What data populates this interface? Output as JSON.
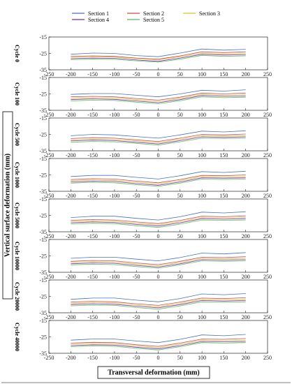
{
  "chart_data": {
    "type": "line",
    "xlabel": "Transversal deformation (mm)",
    "ylabel": "Vertical surface deformation (mm)",
    "xlim": [
      -250,
      250
    ],
    "ylim": [
      -35,
      -15
    ],
    "x_ticks": [
      "-250",
      "-200",
      "-150",
      "-100",
      "-50",
      "0",
      "50",
      "100",
      "150",
      "200",
      "250"
    ],
    "y_ticks": [
      "-15",
      "-25",
      "-35"
    ],
    "legend": [
      {
        "name": "Section 1",
        "color": "#4472C4"
      },
      {
        "name": "Section 2",
        "color": "#C0504D"
      },
      {
        "name": "Section 3",
        "color": "#E6B93B"
      },
      {
        "name": "Section 4",
        "color": "#7030A0"
      },
      {
        "name": "Section 5",
        "color": "#5BBF5B"
      }
    ],
    "x": [
      -200,
      -150,
      -100,
      -50,
      0,
      50,
      100,
      150,
      200
    ],
    "panels": [
      {
        "label": "Cycle 0",
        "series": [
          {
            "name": "Section 1",
            "values": [
              -25.5,
              -24.8,
              -25.0,
              -26.3,
              -27.0,
              -24.8,
              -22.3,
              -23.0,
              -22.5
            ]
          },
          {
            "name": "Section 2",
            "values": [
              -26.8,
              -26.5,
              -26.8,
              -27.8,
              -28.5,
              -26.5,
              -24.0,
              -24.5,
              -24.0
            ]
          },
          {
            "name": "Section 3",
            "values": [
              -27.5,
              -27.0,
              -27.2,
              -28.2,
              -29.0,
              -27.0,
              -24.8,
              -25.3,
              -25.0
            ]
          },
          {
            "name": "Section 4",
            "values": [
              -28.2,
              -27.8,
              -28.0,
              -29.0,
              -29.8,
              -27.8,
              -25.5,
              -26.0,
              -25.8
            ]
          },
          {
            "name": "Section 5",
            "values": [
              -28.8,
              -28.5,
              -28.6,
              -29.5,
              -30.3,
              -28.5,
              -26.2,
              -26.8,
              -26.5
            ]
          }
        ]
      },
      {
        "label": "Cycle 100",
        "series": [
          {
            "name": "Section 1",
            "values": [
              -25.3,
              -24.8,
              -24.8,
              -25.8,
              -26.8,
              -25.0,
              -22.8,
              -23.3,
              -22.5
            ]
          },
          {
            "name": "Section 2",
            "values": [
              -26.8,
              -26.5,
              -26.8,
              -27.8,
              -28.8,
              -27.0,
              -24.5,
              -25.0,
              -24.5
            ]
          },
          {
            "name": "Section 3",
            "values": [
              -27.8,
              -27.3,
              -27.5,
              -28.5,
              -29.5,
              -27.8,
              -25.3,
              -25.8,
              -25.5
            ]
          },
          {
            "name": "Section 4",
            "values": [
              -28.5,
              -28.0,
              -28.3,
              -29.3,
              -30.3,
              -28.5,
              -26.0,
              -26.5,
              -26.3
            ]
          },
          {
            "name": "Section 5",
            "values": [
              -29.3,
              -28.8,
              -29.0,
              -30.0,
              -31.0,
              -29.2,
              -26.8,
              -27.3,
              -27.0
            ]
          }
        ]
      },
      {
        "label": "Cycle 500",
        "series": [
          {
            "name": "Section 1",
            "values": [
              -25.8,
              -25.0,
              -25.3,
              -26.3,
              -27.3,
              -25.3,
              -23.0,
              -23.5,
              -22.8
            ]
          },
          {
            "name": "Section 2",
            "values": [
              -27.5,
              -27.0,
              -27.3,
              -28.3,
              -29.3,
              -27.3,
              -25.0,
              -25.3,
              -24.8
            ]
          },
          {
            "name": "Section 3",
            "values": [
              -28.3,
              -27.8,
              -28.0,
              -29.0,
              -30.0,
              -28.0,
              -25.8,
              -26.0,
              -25.8
            ]
          },
          {
            "name": "Section 4",
            "values": [
              -29.0,
              -28.5,
              -28.8,
              -29.8,
              -30.8,
              -28.8,
              -26.5,
              -26.8,
              -26.5
            ]
          },
          {
            "name": "Section 5",
            "values": [
              -29.8,
              -29.3,
              -29.5,
              -30.5,
              -31.5,
              -29.5,
              -27.3,
              -27.5,
              -27.3
            ]
          }
        ]
      },
      {
        "label": "Cycle 1000",
        "series": [
          {
            "name": "Section 1",
            "values": [
              -26.0,
              -25.3,
              -25.3,
              -26.5,
              -27.5,
              -25.5,
              -23.0,
              -23.5,
              -22.8
            ]
          },
          {
            "name": "Section 2",
            "values": [
              -27.8,
              -27.3,
              -27.5,
              -28.8,
              -29.8,
              -27.8,
              -25.3,
              -25.5,
              -25.0
            ]
          },
          {
            "name": "Section 3",
            "values": [
              -28.5,
              -28.0,
              -28.3,
              -29.5,
              -30.5,
              -28.5,
              -26.0,
              -26.3,
              -26.0
            ]
          },
          {
            "name": "Section 4",
            "values": [
              -29.3,
              -28.8,
              -29.0,
              -30.3,
              -31.3,
              -29.3,
              -26.8,
              -27.0,
              -26.8
            ]
          },
          {
            "name": "Section 5",
            "values": [
              -30.0,
              -29.5,
              -29.8,
              -31.0,
              -32.0,
              -30.0,
              -27.5,
              -27.8,
              -27.5
            ]
          }
        ]
      },
      {
        "label": "Cycle 5000",
        "series": [
          {
            "name": "Section 1",
            "values": [
              -26.3,
              -25.5,
              -25.5,
              -26.8,
              -27.8,
              -25.8,
              -23.0,
              -23.5,
              -22.8
            ]
          },
          {
            "name": "Section 2",
            "values": [
              -28.0,
              -27.5,
              -27.8,
              -29.0,
              -30.0,
              -28.0,
              -25.5,
              -25.8,
              -25.3
            ]
          },
          {
            "name": "Section 3",
            "values": [
              -28.8,
              -28.3,
              -28.5,
              -29.8,
              -30.8,
              -28.8,
              -26.3,
              -26.5,
              -26.3
            ]
          },
          {
            "name": "Section 4",
            "values": [
              -29.5,
              -29.0,
              -29.3,
              -30.5,
              -31.5,
              -29.5,
              -27.0,
              -27.3,
              -27.0
            ]
          },
          {
            "name": "Section 5",
            "values": [
              -30.3,
              -29.8,
              -30.0,
              -31.3,
              -32.3,
              -30.3,
              -27.8,
              -28.0,
              -27.8
            ]
          }
        ]
      },
      {
        "label": "Cycle 10000",
        "series": [
          {
            "name": "Section 1",
            "values": [
              -26.5,
              -25.8,
              -25.8,
              -27.0,
              -28.0,
              -26.0,
              -23.3,
              -23.8,
              -23.0
            ]
          },
          {
            "name": "Section 2",
            "values": [
              -28.3,
              -27.8,
              -28.0,
              -29.3,
              -30.3,
              -28.3,
              -25.8,
              -26.0,
              -25.5
            ]
          },
          {
            "name": "Section 3",
            "values": [
              -29.0,
              -28.5,
              -28.8,
              -30.0,
              -31.0,
              -29.0,
              -26.5,
              -26.8,
              -26.5
            ]
          },
          {
            "name": "Section 4",
            "values": [
              -29.8,
              -29.3,
              -29.5,
              -30.8,
              -31.8,
              -29.8,
              -27.3,
              -27.5,
              -27.3
            ]
          },
          {
            "name": "Section 5",
            "values": [
              -30.5,
              -30.0,
              -30.3,
              -31.5,
              -32.5,
              -30.5,
              -28.0,
              -28.3,
              -28.0
            ]
          }
        ]
      },
      {
        "label": "Cycle 20000",
        "series": [
          {
            "name": "Section 1",
            "values": [
              -26.8,
              -26.0,
              -26.0,
              -27.3,
              -28.3,
              -26.3,
              -23.5,
              -24.0,
              -23.3
            ]
          },
          {
            "name": "Section 2",
            "values": [
              -28.5,
              -28.0,
              -28.3,
              -29.5,
              -30.5,
              -28.5,
              -26.0,
              -26.3,
              -25.8
            ]
          },
          {
            "name": "Section 3",
            "values": [
              -29.3,
              -28.8,
              -29.0,
              -30.3,
              -31.3,
              -29.3,
              -26.8,
              -27.0,
              -26.8
            ]
          },
          {
            "name": "Section 4",
            "values": [
              -30.0,
              -29.5,
              -29.8,
              -31.0,
              -32.0,
              -30.0,
              -27.5,
              -27.8,
              -27.5
            ]
          },
          {
            "name": "Section 5",
            "values": [
              -30.8,
              -30.3,
              -30.5,
              -31.8,
              -32.8,
              -30.8,
              -28.3,
              -28.5,
              -28.3
            ]
          }
        ]
      },
      {
        "label": "Cycle 40000",
        "series": [
          {
            "name": "Section 1",
            "values": [
              -27.0,
              -26.3,
              -26.3,
              -27.5,
              -28.5,
              -26.5,
              -23.8,
              -24.3,
              -23.5
            ]
          },
          {
            "name": "Section 2",
            "values": [
              -28.8,
              -28.3,
              -28.5,
              -29.8,
              -30.8,
              -28.8,
              -26.3,
              -26.5,
              -26.0
            ]
          },
          {
            "name": "Section 3",
            "values": [
              -29.5,
              -29.0,
              -29.3,
              -30.5,
              -31.5,
              -29.5,
              -27.0,
              -27.3,
              -27.0
            ]
          },
          {
            "name": "Section 4",
            "values": [
              -30.3,
              -29.8,
              -30.0,
              -31.3,
              -32.3,
              -30.3,
              -27.8,
              -28.0,
              -27.8
            ]
          },
          {
            "name": "Section 5",
            "values": [
              -31.0,
              -30.5,
              -30.8,
              -32.0,
              -33.0,
              -31.0,
              -28.5,
              -28.8,
              -28.5
            ]
          }
        ]
      }
    ]
  }
}
